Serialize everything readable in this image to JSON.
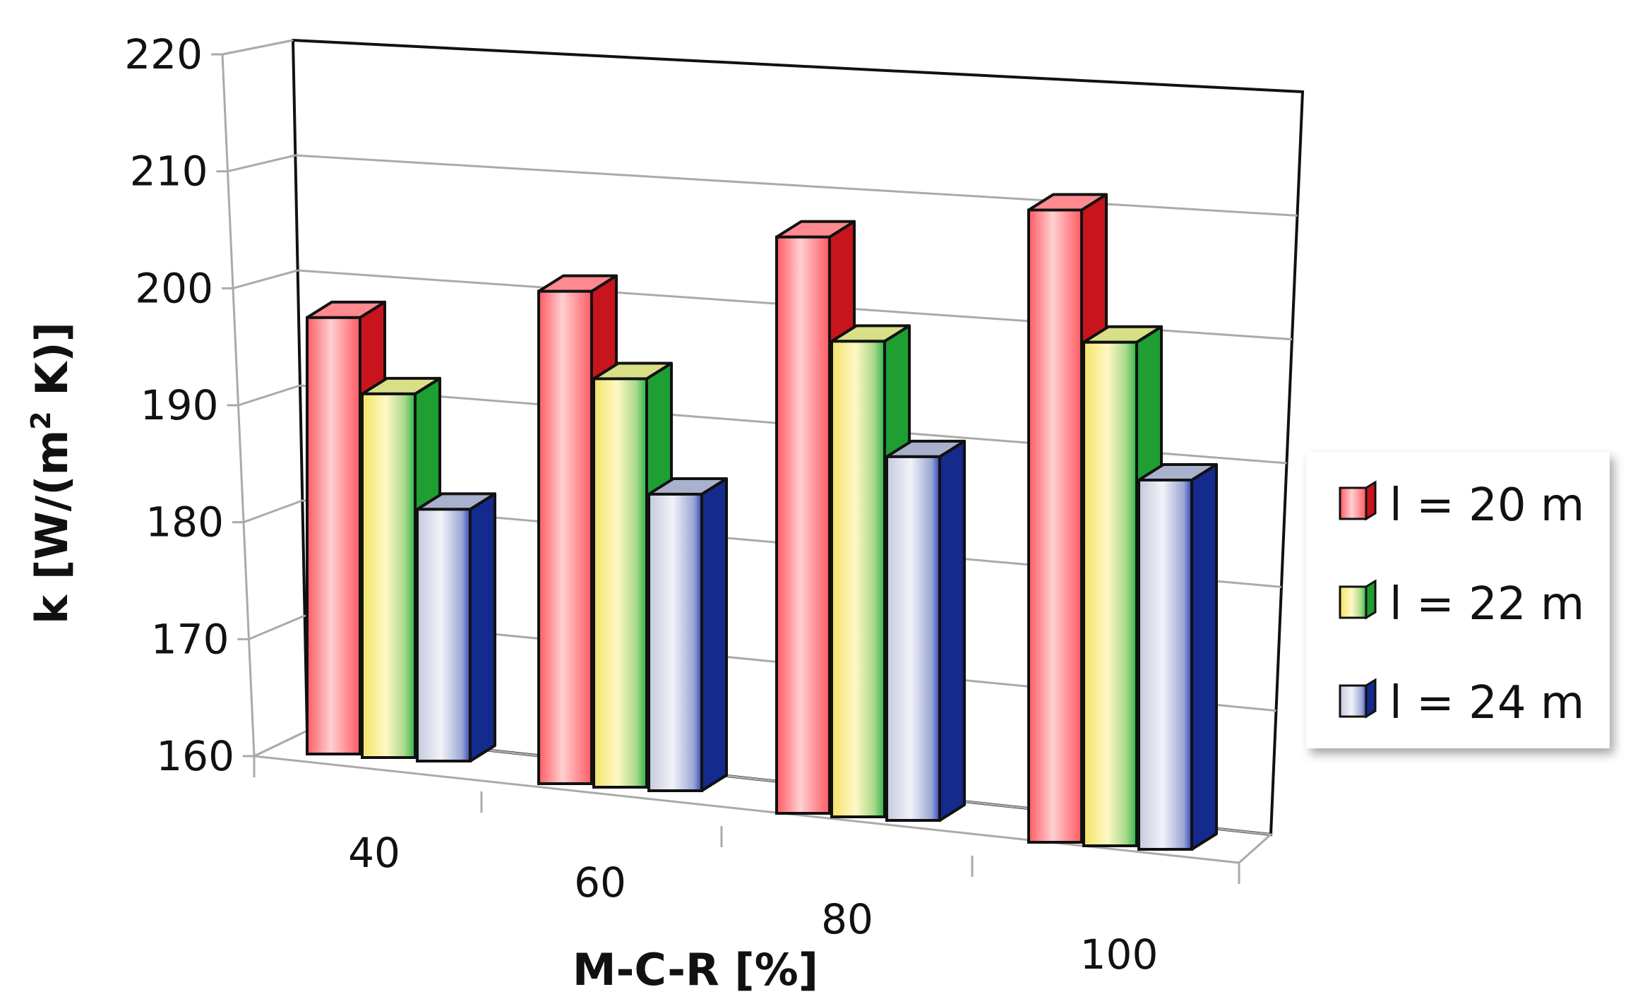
{
  "chart_data": {
    "type": "bar",
    "style": "3d-clustered-column",
    "categories": [
      "40",
      "60",
      "80",
      "100"
    ],
    "series": [
      {
        "name": "l = 20 m",
        "values": [
          199,
          204,
          211.5,
          216.5
        ],
        "front": "#ff6f75",
        "light": "#ffd0d2",
        "side": "#c8141c",
        "top": "#ff8a8f"
      },
      {
        "name": "l = 22 m",
        "values": [
          192.5,
          196.5,
          202.5,
          205
        ],
        "front": "#f4eb86",
        "light": "#fff7c2",
        "side": "#1f9e33",
        "top": "#d9df87"
      },
      {
        "name": "l = 24 m",
        "values": [
          182.5,
          186.5,
          192.5,
          193
        ],
        "front": "#c7cde2",
        "light": "#eef0f7",
        "side": "#142a8c",
        "top": "#a9b1cc"
      }
    ],
    "yticks": [
      "160",
      "170",
      "180",
      "190",
      "200",
      "210",
      "220"
    ],
    "ylim": [
      160,
      220
    ],
    "ylabel_parts": [
      "k [W/(m",
      "2",
      " K)]"
    ],
    "xlabel": "M-C-R [%]",
    "legend_position": "right"
  }
}
